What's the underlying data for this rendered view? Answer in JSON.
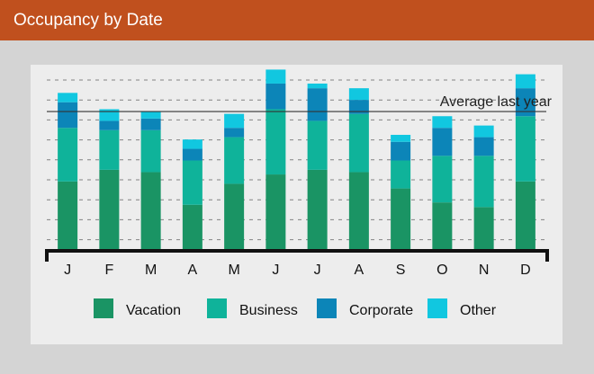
{
  "header": {
    "title": "Occupancy by Date"
  },
  "colors": {
    "header_bg": "#c0501e",
    "vacation": "#1a9464",
    "business": "#0fb39a",
    "corporate": "#0c85b8",
    "other": "#11c7e0",
    "reference_line": "#333333",
    "axis": "#111111"
  },
  "chart_data": {
    "type": "bar",
    "stacked": true,
    "categories": [
      "J",
      "F",
      "M",
      "A",
      "M",
      "J",
      "J",
      "A",
      "S",
      "O",
      "N",
      "D"
    ],
    "series": [
      {
        "name": "Vacation",
        "color": "#1a9464",
        "values": [
          29,
          34,
          33,
          19,
          28,
          32,
          34,
          33,
          26,
          20,
          18,
          29
        ]
      },
      {
        "name": "Business",
        "color": "#0fb39a",
        "values": [
          23,
          17,
          18,
          19,
          20,
          28,
          21,
          25,
          12,
          20,
          22,
          28
        ]
      },
      {
        "name": "Corporate",
        "color": "#0c85b8",
        "values": [
          11,
          4,
          5,
          5,
          4,
          11,
          14,
          6,
          8,
          12,
          8,
          12
        ]
      },
      {
        "name": "Other",
        "color": "#11c7e0",
        "values": [
          4,
          5,
          3,
          4,
          6,
          6,
          2,
          5,
          3,
          5,
          5,
          6
        ]
      }
    ],
    "reference_line": {
      "label": "Average last year",
      "value": 59
    },
    "ylim": [
      0,
      76
    ],
    "grid": "dashed horizontal",
    "legend": {
      "position": "bottom",
      "items": [
        "Vacation",
        "Business",
        "Corporate",
        "Other"
      ]
    },
    "xlabel": "",
    "ylabel": ""
  }
}
